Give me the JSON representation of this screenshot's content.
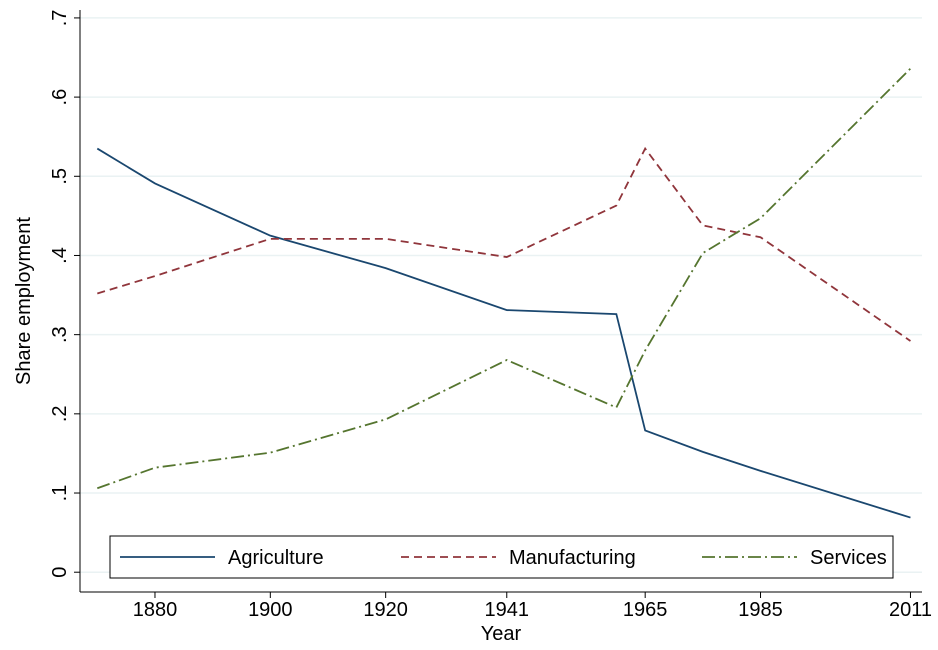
{
  "chart_data": {
    "type": "line",
    "x_label": "Year",
    "y_label": "Share employment",
    "x": [
      1870,
      1880,
      1900,
      1920,
      1941,
      1960,
      1965,
      1975,
      1985,
      2011
    ],
    "series": [
      {
        "name": "Agriculture",
        "color": "#1a476f",
        "dash": "solid",
        "values": [
          0.535,
          0.491,
          0.425,
          0.384,
          0.331,
          0.326,
          0.179,
          0.152,
          0.128,
          0.069
        ]
      },
      {
        "name": "Manufacturing",
        "color": "#90353b",
        "dash": "dash",
        "values": [
          0.352,
          0.374,
          0.421,
          0.421,
          0.398,
          0.463,
          0.535,
          0.438,
          0.423,
          0.292
        ]
      },
      {
        "name": "Services",
        "color": "#55752f",
        "dash": "dashdot",
        "values": [
          0.106,
          0.132,
          0.151,
          0.193,
          0.268,
          0.208,
          0.28,
          0.403,
          0.447,
          0.636
        ]
      }
    ],
    "xlim": [
      1867,
      2013
    ],
    "xticks": [
      1880,
      1900,
      1920,
      1941,
      1965,
      1985,
      2011
    ],
    "ylim": [
      -0.025,
      0.71
    ],
    "yticks": [
      0,
      {
        "value": 0.1,
        "label": ".1"
      },
      {
        "value": 0.2,
        "label": ".2"
      },
      {
        "value": 0.3,
        "label": ".3"
      },
      {
        "value": 0.4,
        "label": ".4"
      },
      {
        "value": 0.5,
        "label": ".5"
      },
      {
        "value": 0.6,
        "label": ".6"
      },
      {
        "value": 0.7,
        "label": ".7"
      }
    ],
    "grid": true,
    "legend": "bottom"
  }
}
